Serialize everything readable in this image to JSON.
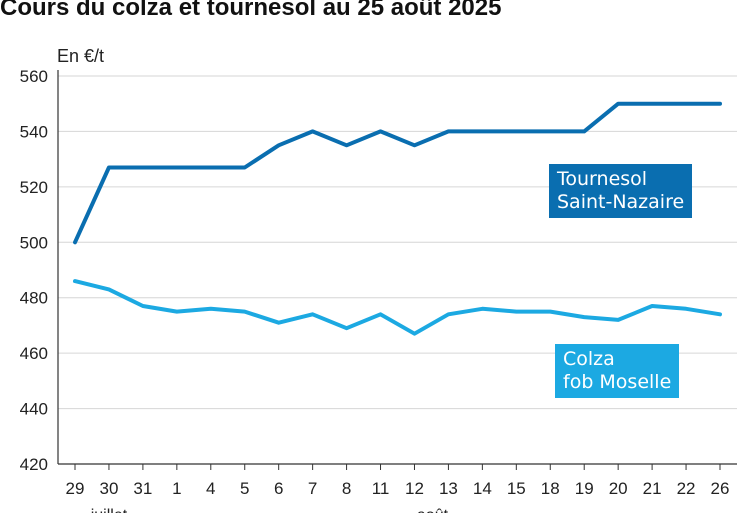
{
  "title": "Cours du colza et tournesol au 25 août 2025",
  "unit": "En €/t",
  "colors": {
    "tournesol": "#0a6eb0",
    "colza": "#1ca9e2",
    "grid": "#d6d6d6"
  },
  "labels": {
    "tournesol": {
      "line1": "Tournesol",
      "line2": "Saint-Nazaire"
    },
    "colza": {
      "line1": "Colza",
      "line2": "fob Moselle"
    }
  },
  "chart_data": {
    "type": "line",
    "title": "Cours du colza et tournesol au 25 août 2025",
    "ylabel": "En €/t",
    "xlabel": "",
    "ylim": [
      420,
      560
    ],
    "yticks": [
      420,
      440,
      460,
      480,
      500,
      520,
      540,
      560
    ],
    "grid": true,
    "categories": [
      "29",
      "30",
      "31",
      "1",
      "4",
      "5",
      "6",
      "7",
      "8",
      "11",
      "12",
      "13",
      "14",
      "15",
      "18",
      "19",
      "20",
      "21",
      "22",
      "26"
    ],
    "month_labels": [
      "juillet",
      "août"
    ],
    "series": [
      {
        "name": "Tournesol Saint-Nazaire",
        "values": [
          500,
          527,
          527,
          527,
          527,
          527,
          535,
          540,
          535,
          540,
          535,
          540,
          540,
          540,
          540,
          540,
          550,
          550,
          550,
          550
        ]
      },
      {
        "name": "Colza fob Moselle",
        "values": [
          486,
          483,
          477,
          475,
          476,
          475,
          471,
          474,
          469,
          474,
          467,
          474,
          476,
          475,
          475,
          473,
          472,
          477,
          476,
          474
        ]
      }
    ]
  }
}
